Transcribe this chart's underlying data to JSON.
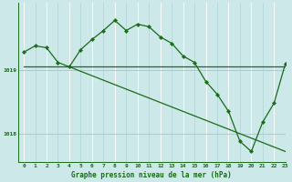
{
  "xlabel": "Graphe pression niveau de la mer (hPa)",
  "xlim": [
    -0.5,
    23
  ],
  "ylim": [
    1017.55,
    1020.05
  ],
  "yticks": [
    1018.0,
    1019.0
  ],
  "ytick_labels": [
    "1018",
    "1019"
  ],
  "xticks": [
    0,
    1,
    2,
    3,
    4,
    5,
    6,
    7,
    8,
    9,
    10,
    11,
    12,
    13,
    14,
    15,
    16,
    17,
    18,
    19,
    20,
    21,
    22,
    23
  ],
  "bg_color": "#cce8e8",
  "vgrid_color": "#b0d8d8",
  "vgrid_color_alt": "#ffffff",
  "hgrid_color": "#e8b0b0",
  "line_color": "#1a6b1a",
  "marker_color": "#1a6b1a",
  "series1": [
    [
      0,
      1019.28
    ],
    [
      1,
      1019.38
    ],
    [
      2,
      1019.35
    ],
    [
      3,
      1019.12
    ],
    [
      4,
      1019.05
    ],
    [
      5,
      1019.32
    ],
    [
      6,
      1019.48
    ],
    [
      7,
      1019.62
    ],
    [
      8,
      1019.78
    ],
    [
      9,
      1019.62
    ],
    [
      10,
      1019.72
    ],
    [
      11,
      1019.68
    ],
    [
      12,
      1019.52
    ],
    [
      13,
      1019.42
    ],
    [
      14,
      1019.22
    ],
    [
      15,
      1019.12
    ],
    [
      16,
      1018.82
    ],
    [
      17,
      1018.62
    ],
    [
      18,
      1018.35
    ],
    [
      19,
      1017.88
    ],
    [
      20,
      1017.72
    ],
    [
      21,
      1018.18
    ],
    [
      22,
      1018.48
    ],
    [
      23,
      1019.1
    ]
  ],
  "series2_x": [
    0,
    23
  ],
  "series2_y": [
    1019.05,
    1019.05
  ],
  "series3_x": [
    4,
    23
  ],
  "series3_y": [
    1019.05,
    1017.72
  ],
  "label_fontsize": 5.5,
  "tick_fontsize": 4.5,
  "xlabel_fontsize": 5.5
}
